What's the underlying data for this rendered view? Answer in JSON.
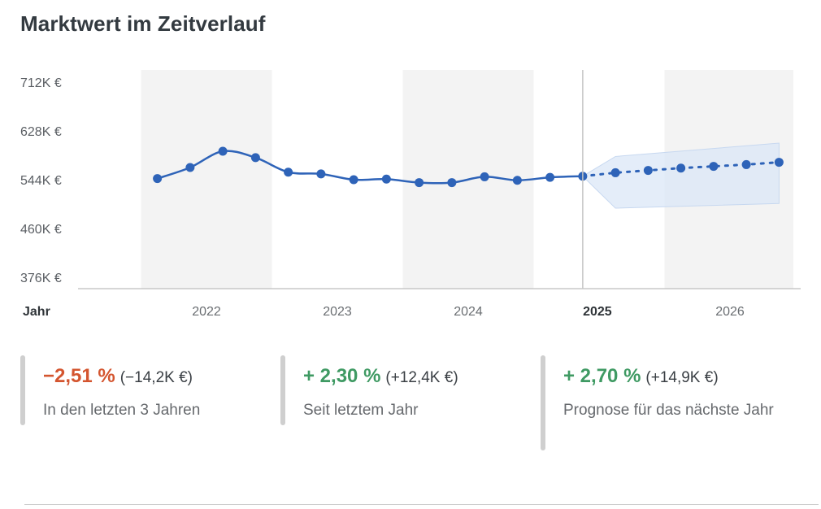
{
  "title": "Marktwert im Zeitverlauf",
  "colors": {
    "line": "#2e63b8",
    "band": "#dbe7f7",
    "stripe": "#f3f3f3",
    "negative": "#d4552f",
    "positive": "#3f9a63"
  },
  "chart_data": {
    "type": "line",
    "xlabel": "Jahr",
    "ylabel": "",
    "grid": false,
    "x_ticks": [
      "2022",
      "2023",
      "2024",
      "2025",
      "2026"
    ],
    "highlight_tick": "2025",
    "y_ticks": [
      "712K €",
      "628K €",
      "544K €",
      "460K €",
      "376K €"
    ],
    "ylim": [
      376,
      712
    ],
    "unit": "K €",
    "series": [
      {
        "name": "",
        "style": "solid",
        "x": [
          2021.625,
          2021.875,
          2022.125,
          2022.375,
          2022.625,
          2022.875,
          2023.125,
          2023.375,
          2023.625,
          2023.875,
          2024.125,
          2024.375,
          2024.625,
          2024.875
        ],
        "values": [
          546,
          565,
          593,
          582,
          557,
          554,
          544,
          545,
          539,
          539,
          549,
          543,
          548,
          550
        ]
      },
      {
        "name": "",
        "style": "dotted",
        "x": [
          2024.875,
          2025.125,
          2025.375,
          2025.625,
          2025.875,
          2026.125,
          2026.375
        ],
        "values": [
          550,
          556,
          560,
          564,
          567,
          570,
          574
        ]
      }
    ],
    "forecast_band": {
      "x": [
        2024.875,
        2025.125,
        2026.375
      ],
      "upper": [
        550,
        584,
        607
      ],
      "lower": [
        550,
        495,
        503
      ]
    },
    "shaded_years": [
      2022,
      2024,
      2026
    ]
  },
  "stats": [
    {
      "pct": "−2,51 %",
      "abs": "(−14,2K €)",
      "desc": "In den letzten 3 Jahren",
      "tone": "negative"
    },
    {
      "pct": "+ 2,30 %",
      "abs": "(+12,4K €)",
      "desc": "Seit letztem Jahr",
      "tone": "positive"
    },
    {
      "pct": "+ 2,70 %",
      "abs": "(+14,9K €)",
      "desc": "Prognose für das nächste Jahr",
      "tone": "positive"
    }
  ]
}
